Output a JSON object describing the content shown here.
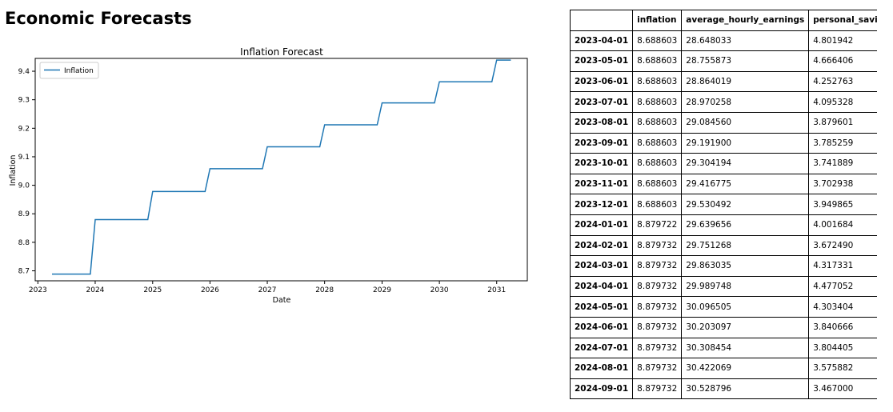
{
  "page": {
    "title": "Economic Forecasts"
  },
  "chart_data": {
    "type": "line",
    "title": "Inflation Forecast",
    "xlabel": "Date",
    "ylabel": "Inflation",
    "xlim": [
      "2022-12-15",
      "2031-07-15"
    ],
    "ylim": [
      8.665,
      9.445
    ],
    "xticks": [
      "2023",
      "2024",
      "2025",
      "2026",
      "2027",
      "2028",
      "2029",
      "2030",
      "2031"
    ],
    "yticks": [
      8.7,
      8.8,
      8.9,
      9.0,
      9.1,
      9.2,
      9.3,
      9.4
    ],
    "grid": false,
    "legend": "top-left",
    "color": "#1f77b4",
    "series": [
      {
        "name": "Inflation",
        "points": [
          [
            "2023-04-01",
            8.6886
          ],
          [
            "2023-12-01",
            8.6886
          ],
          [
            "2024-01-01",
            8.8797
          ],
          [
            "2024-12-01",
            8.8797
          ],
          [
            "2025-01-01",
            8.978
          ],
          [
            "2025-12-01",
            8.978
          ],
          [
            "2026-01-01",
            9.058
          ],
          [
            "2026-12-01",
            9.058
          ],
          [
            "2027-01-01",
            9.135
          ],
          [
            "2027-12-01",
            9.135
          ],
          [
            "2028-01-01",
            9.212
          ],
          [
            "2028-12-01",
            9.212
          ],
          [
            "2029-01-01",
            9.289
          ],
          [
            "2029-12-01",
            9.289
          ],
          [
            "2030-01-01",
            9.363
          ],
          [
            "2030-12-01",
            9.363
          ],
          [
            "2031-01-01",
            9.439
          ],
          [
            "2031-04-01",
            9.439
          ]
        ]
      }
    ]
  },
  "table": {
    "columns": [
      "",
      "inflation",
      "average_hourly_earnings",
      "personal_savings_rate"
    ],
    "rows": [
      [
        "2023-04-01",
        "8.688603",
        "28.648033",
        "4.801942"
      ],
      [
        "2023-05-01",
        "8.688603",
        "28.755873",
        "4.666406"
      ],
      [
        "2023-06-01",
        "8.688603",
        "28.864019",
        "4.252763"
      ],
      [
        "2023-07-01",
        "8.688603",
        "28.970258",
        "4.095328"
      ],
      [
        "2023-08-01",
        "8.688603",
        "29.084560",
        "3.879601"
      ],
      [
        "2023-09-01",
        "8.688603",
        "29.191900",
        "3.785259"
      ],
      [
        "2023-10-01",
        "8.688603",
        "29.304194",
        "3.741889"
      ],
      [
        "2023-11-01",
        "8.688603",
        "29.416775",
        "3.702938"
      ],
      [
        "2023-12-01",
        "8.688603",
        "29.530492",
        "3.949865"
      ],
      [
        "2024-01-01",
        "8.879722",
        "29.639656",
        "4.001684"
      ],
      [
        "2024-02-01",
        "8.879732",
        "29.751268",
        "3.672490"
      ],
      [
        "2024-03-01",
        "8.879732",
        "29.863035",
        "4.317331"
      ],
      [
        "2024-04-01",
        "8.879732",
        "29.989748",
        "4.477052"
      ],
      [
        "2024-05-01",
        "8.879732",
        "30.096505",
        "4.303404"
      ],
      [
        "2024-06-01",
        "8.879732",
        "30.203097",
        "3.840666"
      ],
      [
        "2024-07-01",
        "8.879732",
        "30.308454",
        "3.804405"
      ],
      [
        "2024-08-01",
        "8.879732",
        "30.422069",
        "3.575882"
      ],
      [
        "2024-09-01",
        "8.879732",
        "30.528796",
        "3.467000"
      ]
    ]
  }
}
